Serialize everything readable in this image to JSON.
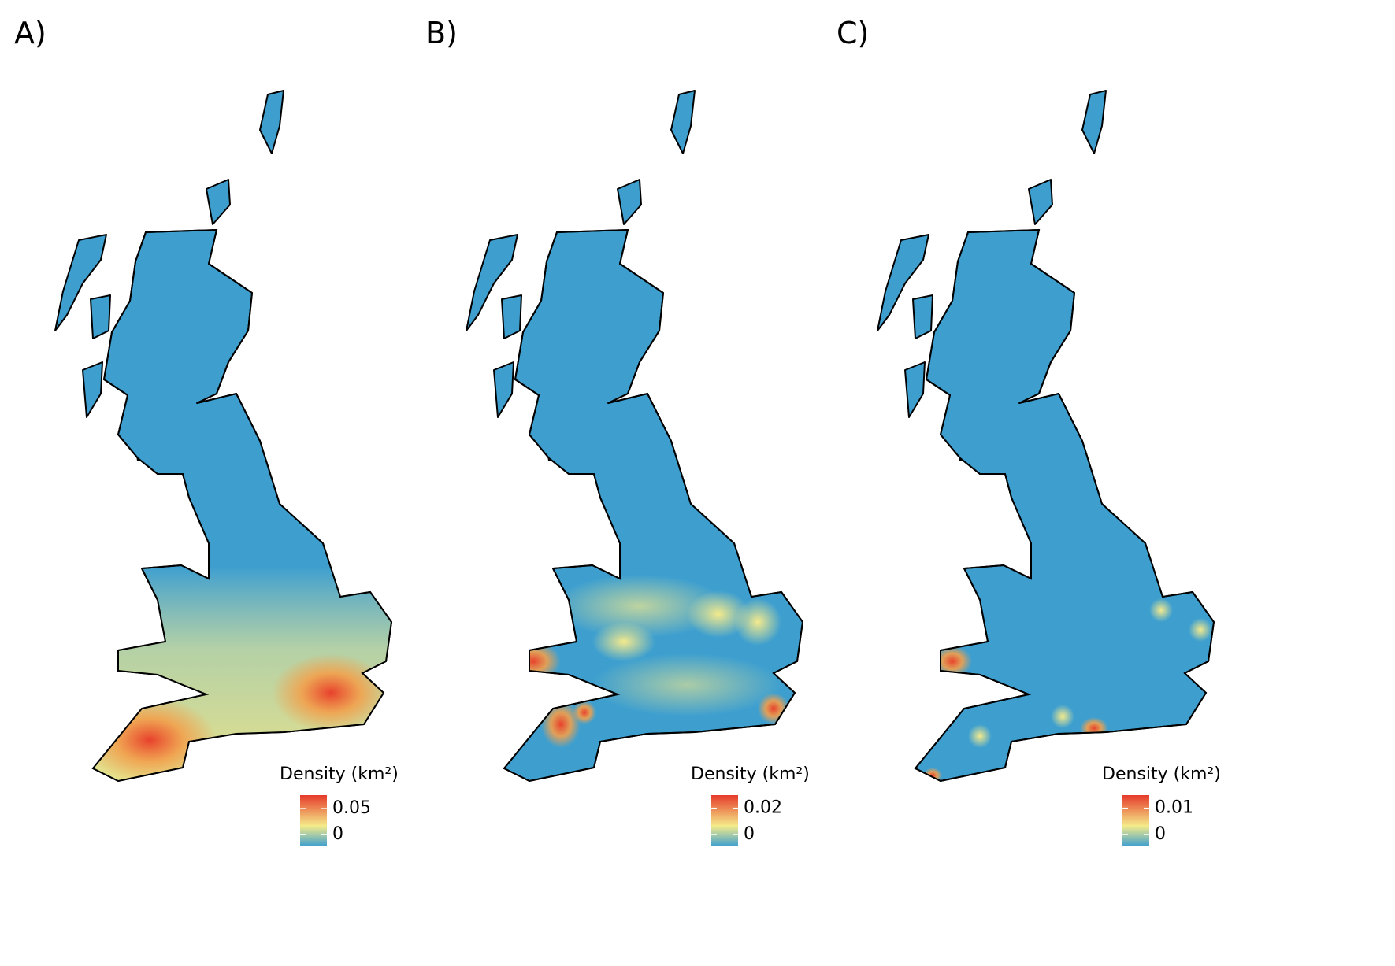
{
  "panels": [
    {
      "label": "A)",
      "legend": {
        "title": "Density (km²)",
        "range": [
          -0.023,
          0.076
        ],
        "ticks": [
          0.05,
          0
        ]
      }
    },
    {
      "label": "B)",
      "legend": {
        "title": "Density (km²)",
        "range": [
          -0.009,
          0.03
        ],
        "ticks": [
          0.02,
          0
        ]
      }
    },
    {
      "label": "C)",
      "legend": {
        "title": "Density (km²)",
        "range": [
          -0.0045,
          0.015
        ],
        "ticks": [
          0.01,
          0
        ]
      }
    }
  ]
}
